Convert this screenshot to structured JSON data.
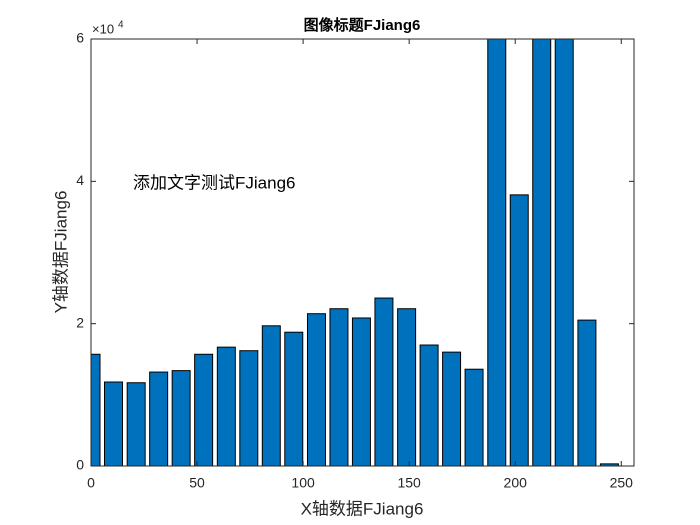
{
  "chart_data": {
    "type": "bar",
    "title": "图像标题FJiang6",
    "x_label": "X轴数据FJiang6",
    "y_label": "Y轴数据FJiang6",
    "annotation": "添加文字测试FJiang6",
    "y_multiplier_base": "×10",
    "y_multiplier_exp": "4",
    "x": [
      0,
      10.6,
      21.3,
      31.9,
      42.5,
      53.1,
      63.8,
      74.4,
      85,
      95.6,
      106.3,
      116.9,
      127.5,
      138.1,
      148.8,
      159.4,
      170,
      180.6,
      191.3,
      201.9,
      212.5,
      223.1,
      233.8,
      244.4
    ],
    "values": [
      15700,
      11800,
      11700,
      13200,
      13400,
      15700,
      16700,
      16200,
      19700,
      18800,
      21400,
      22100,
      20800,
      23600,
      22100,
      17000,
      16000,
      13600,
      62000,
      38100,
      62000,
      62000,
      20500,
      300
    ],
    "color": "#0072bd",
    "xlim": [
      0,
      256
    ],
    "xticks": [
      0,
      50,
      100,
      150,
      200,
      250
    ],
    "ylim": [
      0,
      60000
    ],
    "yticks": [
      {
        "value": 0,
        "label": "0"
      },
      {
        "value": 20000,
        "label": "2"
      },
      {
        "value": 40000,
        "label": "4"
      },
      {
        "value": 60000,
        "label": "6"
      }
    ]
  }
}
